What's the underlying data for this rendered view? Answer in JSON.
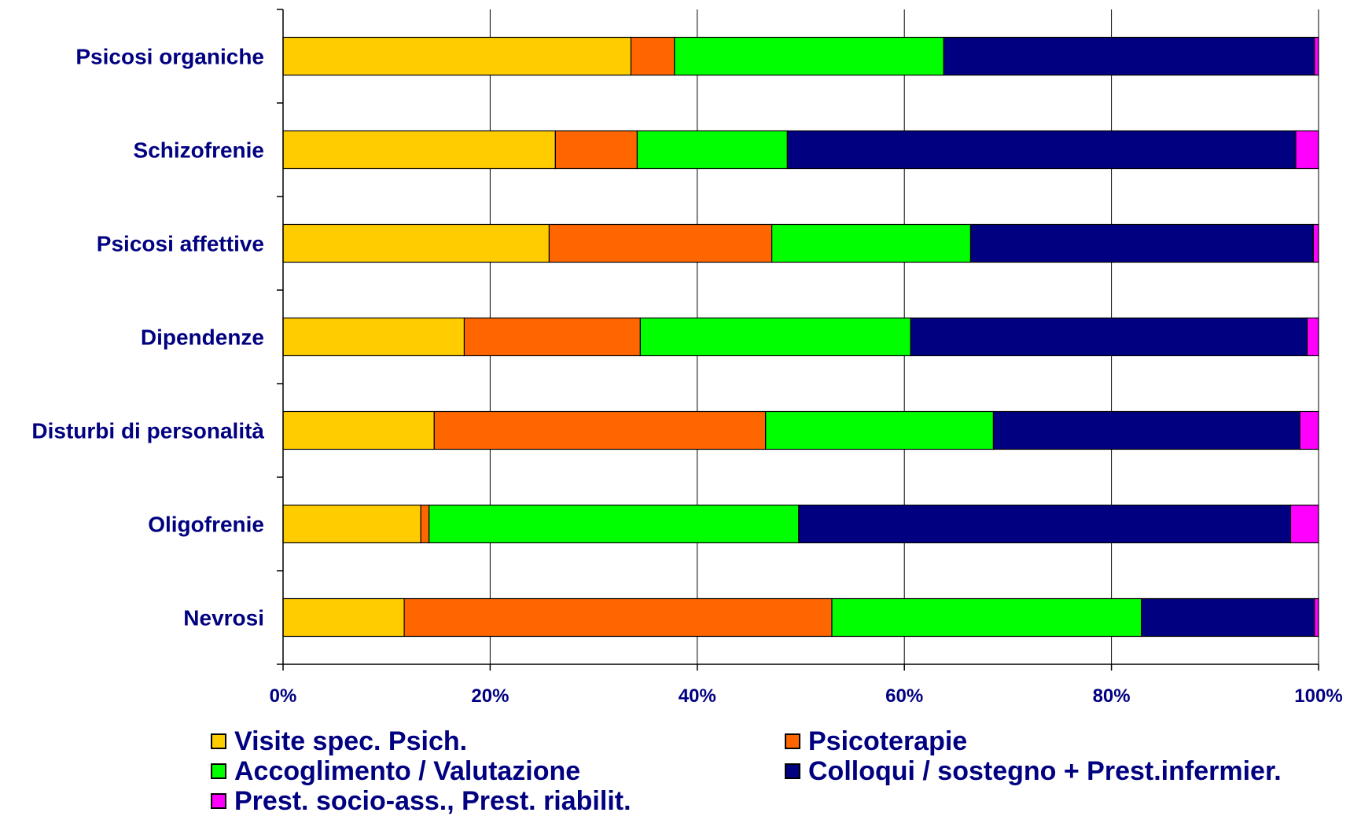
{
  "chart_data": {
    "type": "bar",
    "orientation": "horizontal",
    "stacked": "percent",
    "categories": [
      "Psicosi organiche",
      "Schizofrenie",
      "Psicosi affettive",
      "Dipendenze",
      "Disturbi di personalità",
      "Oligofrenie",
      "Nevrosi"
    ],
    "series": [
      {
        "name": "Visite spec. Psich.",
        "color": "#FFCC00",
        "values": [
          33.6,
          26.3,
          25.7,
          17.5,
          14.6,
          13.3,
          11.7
        ]
      },
      {
        "name": "Psicoterapie",
        "color": "#FF6600",
        "values": [
          4.2,
          7.9,
          21.5,
          17.0,
          32.0,
          0.8,
          41.3
        ]
      },
      {
        "name": "Accoglimento / Valutazione",
        "color": "#00FF00",
        "values": [
          26.0,
          14.5,
          19.2,
          26.1,
          22.0,
          35.7,
          29.9
        ]
      },
      {
        "name": "Colloqui / sostegno + Prest.infermier.",
        "color": "#000080",
        "values": [
          35.8,
          49.1,
          33.1,
          38.3,
          29.6,
          47.5,
          16.7
        ]
      },
      {
        "name": "Prest. socio-ass., Prest. riabilit.",
        "color": "#FF00FF",
        "values": [
          0.4,
          2.2,
          0.5,
          1.1,
          1.8,
          2.7,
          0.4
        ]
      }
    ],
    "xlim": [
      0,
      100
    ],
    "xticks": [
      "0%",
      "20%",
      "40%",
      "60%",
      "80%",
      "100%"
    ],
    "title": "",
    "xlabel": "",
    "ylabel": "",
    "grid": "vertical",
    "legend_position": "bottom"
  }
}
